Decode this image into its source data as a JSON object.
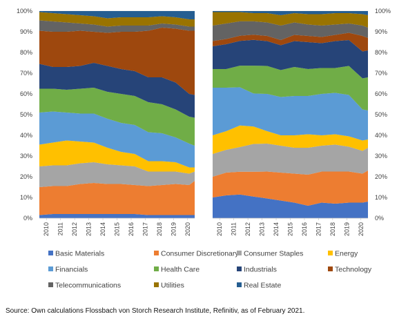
{
  "chart_data": [
    {
      "type": "area",
      "stacked": true,
      "normalized": true,
      "ylim": [
        0,
        100
      ],
      "y_ticks": [
        "0%",
        "10%",
        "20%",
        "30%",
        "40%",
        "50%",
        "60%",
        "70%",
        "80%",
        "90%",
        "100%"
      ],
      "y_axis_side": "left",
      "x_ticks": [
        "2010",
        "2011",
        "2012",
        "2013",
        "2014",
        "2015",
        "2016",
        "2017",
        "2018",
        "2019",
        "2020"
      ],
      "x": [
        2009.5,
        2010.5,
        2011.5,
        2012.5,
        2013.5,
        2014.5,
        2015.5,
        2016.5,
        2017.5,
        2018.5,
        2019.5,
        2020.5,
        2020.9
      ],
      "series": [
        {
          "name": "Basic Materials",
          "values": [
            1.5,
            2,
            2,
            2,
            2,
            2,
            2,
            2,
            1.5,
            1.5,
            1.5,
            1.5,
            1.5
          ]
        },
        {
          "name": "Consumer Discretionary",
          "values": [
            13.5,
            13.5,
            13.5,
            14.5,
            15,
            14.5,
            14.5,
            14,
            14,
            14.5,
            15,
            14.5,
            16.5
          ]
        },
        {
          "name": "Consumer Staples",
          "values": [
            10,
            10,
            10,
            10,
            10,
            9.5,
            9,
            9,
            7,
            6.5,
            6,
            5.5,
            4.5
          ]
        },
        {
          "name": "Energy",
          "values": [
            10.5,
            11,
            12,
            10.5,
            9.5,
            8,
            6.5,
            6,
            5,
            5,
            4.5,
            3,
            2
          ]
        },
        {
          "name": "Financials",
          "values": [
            15.5,
            15,
            13.5,
            13.5,
            14,
            14,
            14,
            14,
            14,
            13.5,
            12,
            11.5,
            10.5
          ]
        },
        {
          "name": "Health Care",
          "values": [
            11.5,
            11,
            11,
            12,
            12.5,
            13,
            14,
            14,
            14.5,
            14,
            13.5,
            13,
            13.5
          ]
        },
        {
          "name": "Industrials",
          "values": [
            12,
            10.5,
            11,
            11,
            12,
            12.5,
            12,
            12,
            12,
            13,
            13,
            11,
            11
          ]
        },
        {
          "name": "Technology",
          "values": [
            16,
            17,
            17,
            17,
            15,
            16,
            18,
            19,
            22.5,
            24,
            26,
            30.5,
            31
          ]
        },
        {
          "name": "Telecommunications",
          "values": [
            5,
            5,
            4.5,
            3.5,
            3.5,
            3,
            3,
            3,
            2.5,
            2,
            2,
            2,
            2
          ]
        },
        {
          "name": "Utilities",
          "values": [
            4,
            4,
            4,
            4,
            4,
            4,
            4,
            4,
            4,
            3.5,
            3.5,
            3.5,
            3.5
          ]
        },
        {
          "name": "Real Estate",
          "values": [
            0.5,
            1,
            1.5,
            2,
            2.5,
            3.5,
            3,
            3,
            3,
            2.5,
            3,
            4,
            4
          ]
        }
      ]
    },
    {
      "type": "area",
      "stacked": true,
      "normalized": true,
      "ylim": [
        0,
        100
      ],
      "y_ticks": [
        "0%",
        "10%",
        "20%",
        "30%",
        "40%",
        "50%",
        "60%",
        "70%",
        "80%",
        "90%",
        "100%"
      ],
      "y_axis_side": "right",
      "x_ticks": [
        "2010",
        "2011",
        "2012",
        "2013",
        "2014",
        "2015",
        "2016",
        "2017",
        "2018",
        "2019",
        "2020"
      ],
      "x": [
        2009.5,
        2010.5,
        2011.5,
        2012.5,
        2013.5,
        2014.5,
        2015.5,
        2016.5,
        2017.5,
        2018.5,
        2019.5,
        2020.5,
        2020.9
      ],
      "series": [
        {
          "name": "Basic Materials",
          "values": [
            10,
            11,
            11.5,
            10.5,
            9.5,
            8.5,
            7.5,
            6,
            7.5,
            7,
            7.5,
            7.5,
            8
          ]
        },
        {
          "name": "Consumer Discretionary",
          "values": [
            10,
            11,
            11,
            12,
            13,
            13.5,
            14,
            15,
            15,
            15.5,
            15,
            14,
            15
          ]
        },
        {
          "name": "Consumer Staples",
          "values": [
            11,
            11,
            12,
            13.5,
            13.5,
            13,
            12.5,
            13,
            12.5,
            13,
            12,
            11,
            11
          ]
        },
        {
          "name": "Energy",
          "values": [
            9,
            9,
            10.5,
            8.5,
            6,
            5,
            6,
            6.5,
            5,
            5,
            5,
            5,
            4
          ]
        },
        {
          "name": "Financials",
          "values": [
            23,
            21,
            18.5,
            16,
            18,
            18.5,
            19,
            18.5,
            20,
            20,
            20,
            15,
            14
          ]
        },
        {
          "name": "Health Care",
          "values": [
            9,
            9,
            10.5,
            13.5,
            13.5,
            13,
            14,
            13,
            12.5,
            12,
            14,
            15,
            16
          ]
        },
        {
          "name": "Industrials",
          "values": [
            11,
            12,
            12,
            12.5,
            12,
            12,
            12.5,
            13,
            12,
            13,
            12.5,
            13,
            13
          ]
        },
        {
          "name": "Technology",
          "values": [
            2.5,
            2.5,
            2.5,
            2.5,
            2.5,
            2.5,
            3,
            3,
            3,
            3,
            3.5,
            7.5,
            6
          ]
        },
        {
          "name": "Telecommunications",
          "values": [
            7.5,
            7.5,
            7,
            6.5,
            6.5,
            7,
            6,
            5.5,
            5.5,
            5,
            4.5,
            5,
            5
          ]
        },
        {
          "name": "Utilities",
          "values": [
            6.5,
            5.5,
            4.5,
            4,
            4.5,
            5,
            4.5,
            5,
            5.5,
            5.5,
            5,
            5.5,
            6
          ]
        },
        {
          "name": "Real Estate",
          "values": [
            0.5,
            0.5,
            0.5,
            1,
            1,
            2,
            1,
            1.5,
            1.5,
            1,
            1,
            1.5,
            2
          ]
        }
      ]
    }
  ],
  "legend": [
    {
      "label": "Basic Materials",
      "color": "#4472c4"
    },
    {
      "label": "Consumer Discretionary",
      "color": "#ed7d31"
    },
    {
      "label": "Consumer Staples",
      "color": "#a5a5a5"
    },
    {
      "label": "Energy",
      "color": "#ffc000"
    },
    {
      "label": "Financials",
      "color": "#5b9bd5"
    },
    {
      "label": "Health Care",
      "color": "#70ad47"
    },
    {
      "label": "Industrials",
      "color": "#264478"
    },
    {
      "label": "Technology",
      "color": "#9e480e"
    },
    {
      "label": "Telecommunications",
      "color": "#636363"
    },
    {
      "label": "Utilities",
      "color": "#997300"
    },
    {
      "label": "Real Estate",
      "color": "#255e91"
    }
  ],
  "source": "Source: Own calculations Flossbach von Storch Research Institute, Refinitiv, as of February 2021."
}
